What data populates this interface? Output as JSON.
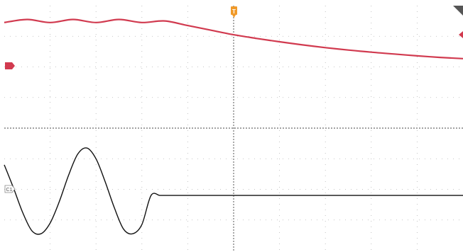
{
  "markers": {
    "trigger_label": "T",
    "ch2_label": "",
    "ch1_label": "C1"
  },
  "colors": {
    "background": "#ffffff",
    "grid": "#b5b5b5",
    "center_line": "#444444",
    "channel2": "#d13a4f",
    "channel1": "#111111",
    "trigger": "#f09a2a",
    "corner": "#555555"
  },
  "chart_data": {
    "type": "line",
    "title": "",
    "xlabel": "",
    "ylabel": "",
    "grid": true,
    "divisions": {
      "x": 10,
      "y": 8
    },
    "xlim": [
      -5,
      5
    ],
    "ylim": [
      -4,
      4
    ],
    "series": [
      {
        "channel": "ch2",
        "values_x": [
          -5.0,
          -4.5,
          -4.0,
          -3.5,
          -3.0,
          -2.5,
          -2.0,
          -1.5,
          -1.0,
          -0.5,
          0.0,
          0.5,
          1.0,
          1.5,
          2.0,
          2.5,
          3.0,
          3.5,
          4.0,
          4.5,
          5.0
        ],
        "values_y": [
          3.45,
          3.55,
          3.45,
          3.55,
          3.45,
          3.55,
          3.45,
          3.5,
          3.35,
          3.2,
          3.05,
          2.93,
          2.82,
          2.72,
          2.63,
          2.55,
          2.48,
          2.42,
          2.36,
          2.31,
          2.27
        ]
      },
      {
        "channel": "ch1",
        "values_x": [
          -5.0,
          -4.8,
          -4.6,
          -4.4,
          -4.2,
          -4.0,
          -3.8,
          -3.6,
          -3.4,
          -3.2,
          -3.0,
          -2.8,
          -2.6,
          -2.4,
          -2.2,
          -2.0,
          -1.8,
          -1.6,
          -1.4,
          -1.2,
          -1.0,
          -0.5,
          0.0,
          0.5,
          1.0,
          1.5,
          2.0,
          2.5,
          3.0,
          3.5,
          4.0,
          4.5,
          5.0
        ],
        "values_y": [
          -1.2,
          -1.95,
          -2.75,
          -3.35,
          -3.45,
          -3.1,
          -2.4,
          -1.55,
          -0.85,
          -0.65,
          -1.0,
          -1.75,
          -2.6,
          -3.3,
          -3.45,
          -3.15,
          -2.2,
          -2.2,
          -2.2,
          -2.2,
          -2.2,
          -2.2,
          -2.2,
          -2.2,
          -2.2,
          -2.2,
          -2.2,
          -2.2,
          -2.2,
          -2.2,
          -2.2,
          -2.2,
          -2.2
        ]
      }
    ]
  }
}
